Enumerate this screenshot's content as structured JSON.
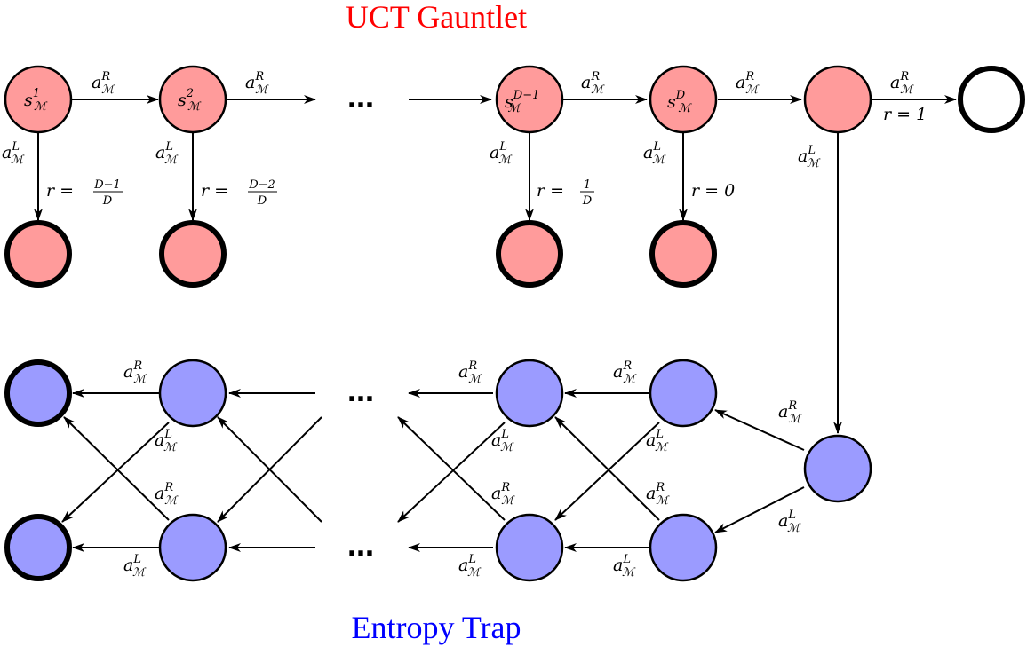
{
  "titles": {
    "gauntlet": "UCT Gauntlet",
    "trap": "Entropy Trap"
  },
  "colors": {
    "gauntlet_title": "#ff0000",
    "trap_title": "#0000ff",
    "gauntlet_node": "#ff9b9b",
    "trap_node": "#9b9bff",
    "terminal_node": "#ffffff",
    "stroke": "#000000"
  },
  "symbols": {
    "action": "a",
    "right_sup": "R",
    "left_sup": "L",
    "mdp_sub": "ℳ",
    "state": "s",
    "ellipsis": "…"
  },
  "states": {
    "s1_sup": "1",
    "s2_sup": "2",
    "sDm1_sup": "D−1",
    "sD_sup": "D"
  },
  "rewards": {
    "prefix": "r =",
    "r1_num": "D−1",
    "r1_den": "D",
    "r2_num": "D−2",
    "r2_den": "D",
    "r3_num": "1",
    "r3_den": "D",
    "r4": "r = 0",
    "r5": "r = 1"
  }
}
